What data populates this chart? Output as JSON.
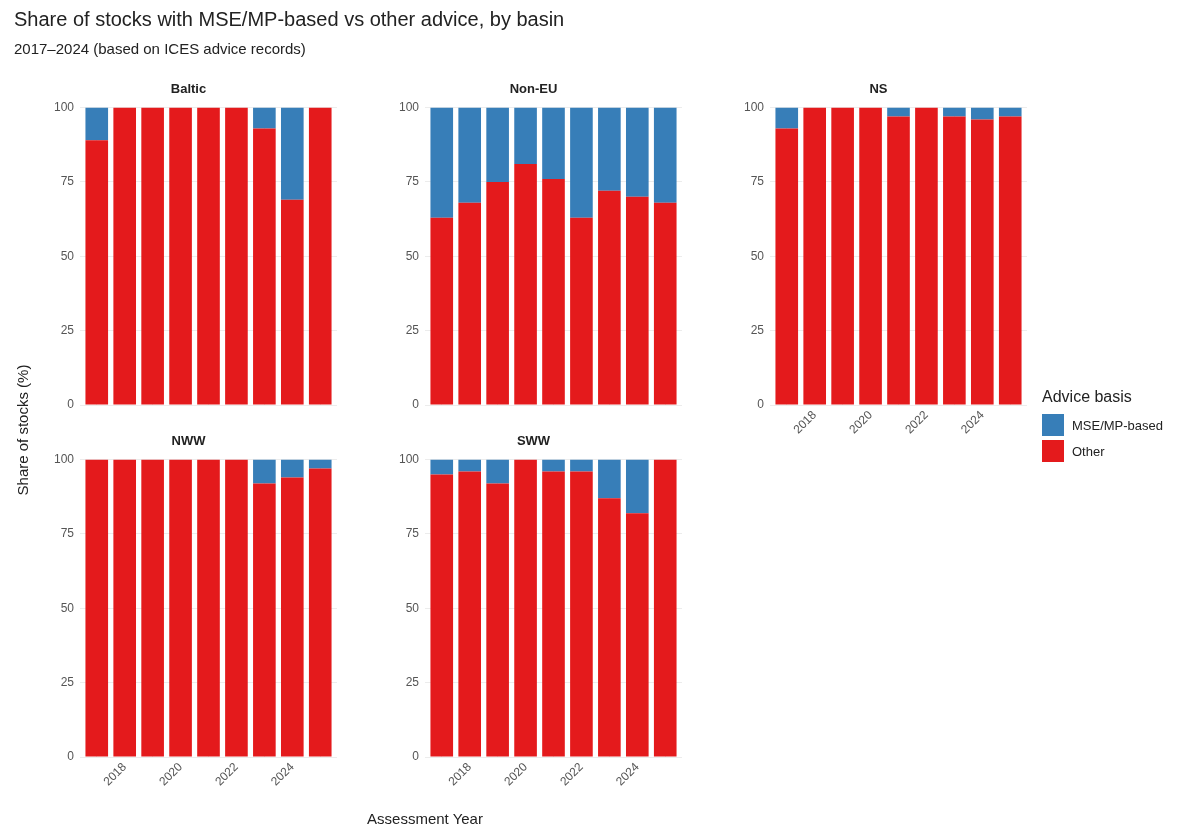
{
  "chart_data": [
    {
      "type": "bar",
      "title": "Baltic",
      "annotations": [
        "Share of stocks with MSE/MP-based vs other advice, by basin",
        "2017–2024 (based on ICES advice records)"
      ],
      "ylabel": "Share of stocks (%)",
      "legend": "right",
      "legend_title": "Advice basis",
      "stacked": true,
      "grid": true,
      "tick_labels": "y",
      "x": [
        2017,
        2018,
        2019,
        2020,
        2021,
        2022,
        2023,
        2024,
        2025
      ],
      "xlim": [
        2016.4,
        2025.6
      ],
      "xticks": [
        2018,
        2020,
        2022,
        2024
      ],
      "ylim": [
        0,
        100
      ],
      "yticks": [
        0,
        25,
        50,
        75,
        100
      ],
      "series": [
        {
          "name": "Other",
          "color": "#e41a1c",
          "values": [
            89,
            100,
            100,
            100,
            100,
            100,
            93,
            69,
            100
          ]
        },
        {
          "name": "MSE/MP-based",
          "color": "#377eb8",
          "values": [
            11,
            0,
            0,
            0,
            0,
            0,
            7,
            31,
            0
          ]
        }
      ]
    },
    {
      "type": "bar",
      "title": "Non-EU",
      "stacked": true,
      "grid": true,
      "tick_labels": "y",
      "x": [
        2017,
        2018,
        2019,
        2020,
        2021,
        2022,
        2023,
        2024,
        2025
      ],
      "xlim": [
        2016.4,
        2025.6
      ],
      "xticks": [
        2018,
        2020,
        2022,
        2024
      ],
      "ylim": [
        0,
        100
      ],
      "yticks": [
        0,
        25,
        50,
        75,
        100
      ],
      "series": [
        {
          "color": "#e41a1c",
          "values": [
            63,
            68,
            75,
            81,
            76,
            63,
            72,
            70,
            68
          ]
        },
        {
          "color": "#377eb8",
          "values": [
            37,
            32,
            25,
            19,
            24,
            37,
            28,
            30,
            32
          ]
        }
      ]
    },
    {
      "type": "bar",
      "title": "NS",
      "stacked": true,
      "grid": true,
      "x": [
        2017,
        2018,
        2019,
        2020,
        2021,
        2022,
        2023,
        2024,
        2025
      ],
      "xlim": [
        2016.4,
        2025.6
      ],
      "xticks": [
        2018,
        2020,
        2022,
        2024
      ],
      "ylim": [
        0,
        100
      ],
      "yticks": [
        0,
        25,
        50,
        75,
        100
      ],
      "series": [
        {
          "color": "#e41a1c",
          "values": [
            93,
            100,
            100,
            100,
            97,
            100,
            97,
            96,
            97
          ]
        },
        {
          "color": "#377eb8",
          "values": [
            7,
            0,
            0,
            0,
            3,
            0,
            3,
            4,
            3
          ]
        }
      ]
    },
    {
      "type": "bar",
      "title": "NWW",
      "stacked": true,
      "grid": true,
      "x": [
        2017,
        2018,
        2019,
        2020,
        2021,
        2022,
        2023,
        2024,
        2025
      ],
      "xlim": [
        2016.4,
        2025.6
      ],
      "xticks": [
        2018,
        2020,
        2022,
        2024
      ],
      "ylim": [
        0,
        100
      ],
      "yticks": [
        0,
        25,
        50,
        75,
        100
      ],
      "series": [
        {
          "color": "#e41a1c",
          "values": [
            100,
            100,
            100,
            100,
            100,
            100,
            92,
            94,
            97
          ]
        },
        {
          "color": "#377eb8",
          "values": [
            0,
            0,
            0,
            0,
            0,
            0,
            8,
            6,
            3
          ]
        }
      ]
    },
    {
      "type": "bar",
      "title": "SWW",
      "xlabel": "Assessment Year",
      "stacked": true,
      "grid": true,
      "x": [
        2017,
        2018,
        2019,
        2020,
        2021,
        2022,
        2023,
        2024,
        2025
      ],
      "xlim": [
        2016.4,
        2025.6
      ],
      "xticks": [
        2018,
        2020,
        2022,
        2024
      ],
      "ylim": [
        0,
        100
      ],
      "yticks": [
        0,
        25,
        50,
        75,
        100
      ],
      "series": [
        {
          "color": "#e41a1c",
          "values": [
            95,
            96,
            92,
            100,
            96,
            96,
            87,
            82,
            100
          ]
        },
        {
          "color": "#377eb8",
          "values": [
            5,
            4,
            8,
            0,
            4,
            4,
            13,
            18,
            0
          ]
        }
      ]
    }
  ]
}
